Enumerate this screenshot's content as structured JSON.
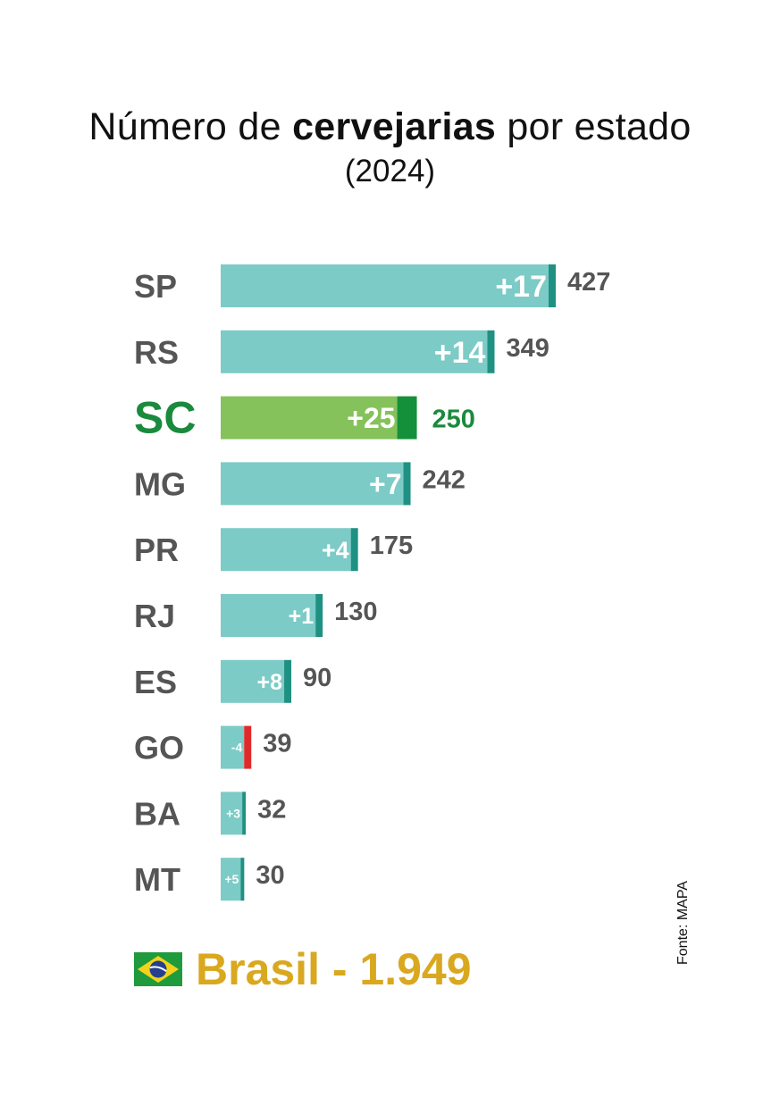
{
  "title": {
    "prefix": "Número de",
    "bold": "cervejarias",
    "suffix": "por estado"
  },
  "subtitle": "(2024)",
  "chart_data": {
    "type": "bar",
    "orientation": "horizontal",
    "title": "Número de cervejarias por estado (2024)",
    "categories": [
      "SP",
      "RS",
      "SC",
      "MG",
      "PR",
      "RJ",
      "ES",
      "GO",
      "BA",
      "MT"
    ],
    "values": [
      427,
      349,
      250,
      242,
      175,
      130,
      90,
      39,
      32,
      30
    ],
    "change_labels": [
      "+17",
      "+14",
      "+25",
      "+7",
      "+4",
      "+1",
      "+8",
      "-4",
      "+3",
      "+5"
    ],
    "changes": [
      17,
      14,
      25,
      7,
      4,
      1,
      8,
      -4,
      3,
      5
    ],
    "highlight": "SC",
    "xlabel": "",
    "ylabel": "",
    "xlim": [
      0,
      427
    ],
    "grid": false
  },
  "total": {
    "text": "Brasil - 1.949",
    "value": 1949
  },
  "source": "Fonte: MAPA",
  "colors": {
    "bar": "#7ccbc6",
    "bar_cap": "#1f9183",
    "highlight_bar": "#85c25b",
    "highlight_cap": "#15903a",
    "negative_cap": "#e02a2a",
    "label": "#555555",
    "highlight_text": "#1a8a3c",
    "total_text": "#d9a81e",
    "change_text": "#ffffff"
  },
  "icons": {
    "flag": "brazil-flag-icon"
  }
}
